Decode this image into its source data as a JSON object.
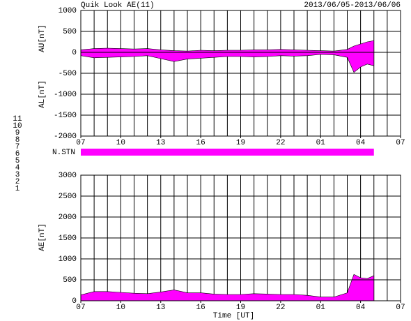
{
  "header": {
    "title": "Quik Look AE(11)",
    "date_range": "2013/06/05-2013/06/06"
  },
  "station_legend": [
    {
      "label": "11",
      "color": "#00e0e0"
    },
    {
      "label": "10",
      "color": "#ff00ff"
    },
    {
      "label": "9",
      "color": "#6040ff"
    },
    {
      "label": "8",
      "color": "#ffff60"
    },
    {
      "label": "7",
      "color": "#80ff80"
    },
    {
      "label": "6",
      "color": "#ff2020"
    },
    {
      "label": "5",
      "color": "#d0d0d0"
    },
    {
      "label": "4",
      "color": "#909090"
    },
    {
      "label": "3",
      "color": "#00a0a0"
    },
    {
      "label": "2",
      "color": "#a000a0"
    },
    {
      "label": "1",
      "color": "#2020c0"
    }
  ],
  "station_coverage": {
    "label": "N.STN",
    "start": 0,
    "end": 22,
    "color": "#ff00ff"
  },
  "chart_data": [
    {
      "type": "area",
      "ylabels": [
        "AU[nT]",
        "AL[nT]"
      ],
      "x": [
        0,
        1,
        2,
        3,
        4,
        5,
        6,
        7,
        8,
        9,
        10,
        11,
        12,
        13,
        14,
        15,
        16,
        17,
        18,
        19,
        20,
        20.5,
        21,
        21.5,
        22
      ],
      "series": [
        {
          "name": "AU",
          "color": "#ff00ff",
          "values": [
            60,
            90,
            100,
            90,
            80,
            90,
            60,
            40,
            30,
            50,
            40,
            50,
            50,
            60,
            60,
            70,
            60,
            50,
            40,
            30,
            70,
            150,
            200,
            250,
            280
          ]
        },
        {
          "name": "AL",
          "color": "#ff00ff",
          "values": [
            -80,
            -130,
            -120,
            -110,
            -100,
            -80,
            -150,
            -220,
            -160,
            -140,
            -120,
            -100,
            -100,
            -110,
            -100,
            -80,
            -90,
            -80,
            -50,
            -60,
            -120,
            -480,
            -350,
            -280,
            -320
          ]
        }
      ],
      "xlim": [
        0,
        24
      ],
      "xticks": [
        {
          "value": 0,
          "label": "07"
        },
        {
          "value": 3,
          "label": "10"
        },
        {
          "value": 6,
          "label": "13"
        },
        {
          "value": 9,
          "label": "16"
        },
        {
          "value": 12,
          "label": "19"
        },
        {
          "value": 15,
          "label": "22"
        },
        {
          "value": 18,
          "label": "01"
        },
        {
          "value": 21,
          "label": "04"
        },
        {
          "value": 24,
          "label": "07"
        }
      ],
      "xgrid_step": 1,
      "ylim": [
        -2000,
        1000
      ],
      "yticks": [
        1000,
        500,
        0,
        -500,
        -1000,
        -1500,
        -2000
      ],
      "grid": true
    },
    {
      "type": "area",
      "ylabels": [
        "AE[nT]"
      ],
      "xlabel": "Time [UT]",
      "x": [
        0,
        1,
        2,
        3,
        4,
        5,
        6,
        7,
        8,
        9,
        10,
        11,
        12,
        13,
        14,
        15,
        16,
        17,
        18,
        19,
        20,
        20.5,
        21,
        21.5,
        22
      ],
      "series": [
        {
          "name": "AE",
          "color": "#ff00ff",
          "values": [
            140,
            220,
            220,
            200,
            180,
            170,
            210,
            260,
            190,
            190,
            160,
            150,
            150,
            170,
            160,
            150,
            150,
            130,
            90,
            90,
            190,
            630,
            550,
            530,
            600
          ]
        }
      ],
      "xlim": [
        0,
        24
      ],
      "xticks": [
        {
          "value": 0,
          "label": "07"
        },
        {
          "value": 3,
          "label": "10"
        },
        {
          "value": 6,
          "label": "13"
        },
        {
          "value": 9,
          "label": "16"
        },
        {
          "value": 12,
          "label": "19"
        },
        {
          "value": 15,
          "label": "22"
        },
        {
          "value": 18,
          "label": "01"
        },
        {
          "value": 21,
          "label": "04"
        },
        {
          "value": 24,
          "label": "07"
        }
      ],
      "xgrid_step": 1,
      "ylim": [
        0,
        3000
      ],
      "yticks": [
        3000,
        2500,
        2000,
        1500,
        1000,
        500,
        0
      ],
      "grid": true
    }
  ]
}
